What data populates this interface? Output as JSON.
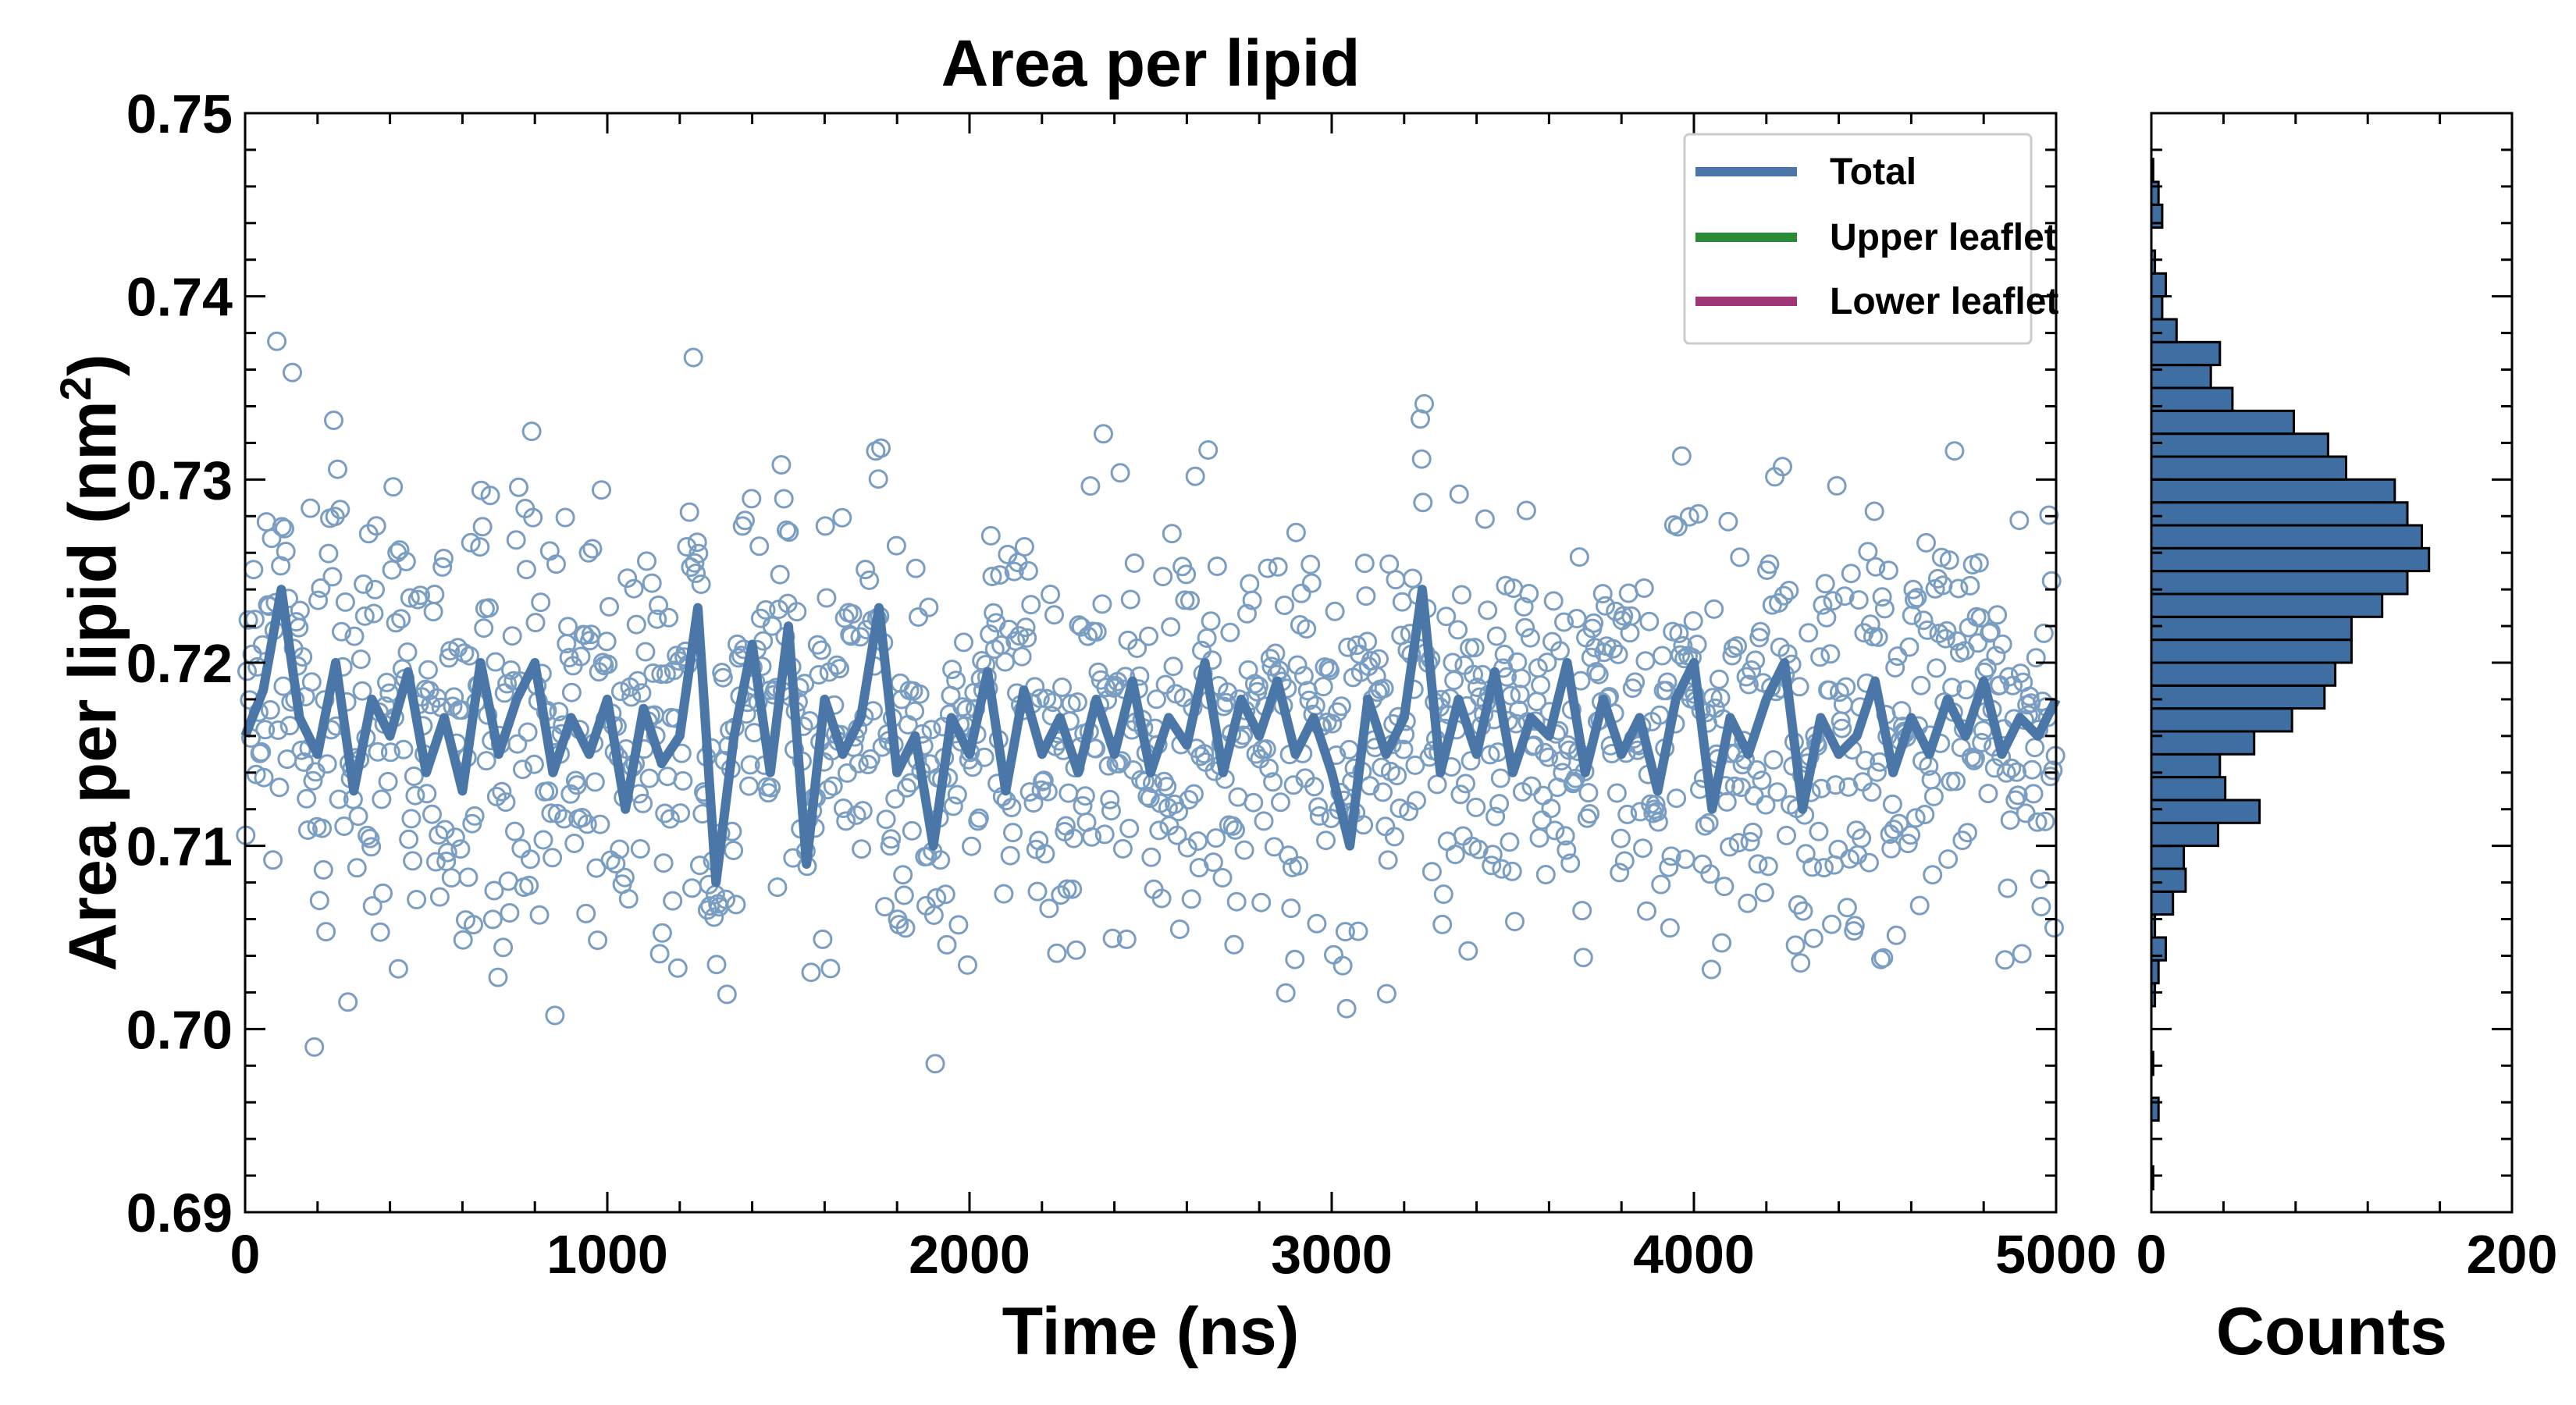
{
  "chart_data": [
    {
      "type": "scatter",
      "title": "Area per lipid",
      "xlabel": "Time (ns)",
      "ylabel": "Area per lipid (nm",
      "ylabel_sup": "2",
      "ylabel_close": ")",
      "xlim": [
        0,
        5000
      ],
      "ylim": [
        0.69,
        0.75
      ],
      "xticks": [
        "0",
        "1000",
        "2000",
        "3000",
        "4000",
        "5000"
      ],
      "yticks": [
        "0.69",
        "0.70",
        "0.71",
        "0.72",
        "0.73",
        "0.74",
        "0.75"
      ],
      "legend": [
        {
          "label": "Total",
          "color": "#4a77a8"
        },
        {
          "label": "Upper leaflet",
          "color": "#2a8a3a"
        },
        {
          "label": "Lower leaflet",
          "color": "#a03676"
        }
      ],
      "scatter_color": "#7a9dc2",
      "series": [
        {
          "name": "Total",
          "kind": "line",
          "color": "#4a77a8",
          "x": [
            0,
            50,
            100,
            150,
            200,
            250,
            300,
            350,
            400,
            450,
            500,
            550,
            600,
            650,
            700,
            750,
            800,
            850,
            900,
            950,
            1000,
            1050,
            1100,
            1150,
            1200,
            1250,
            1300,
            1350,
            1400,
            1450,
            1500,
            1550,
            1600,
            1650,
            1700,
            1750,
            1800,
            1850,
            1900,
            1950,
            2000,
            2050,
            2100,
            2150,
            2200,
            2250,
            2300,
            2350,
            2400,
            2450,
            2500,
            2550,
            2600,
            2650,
            2700,
            2750,
            2800,
            2850,
            2900,
            2950,
            3000,
            3050,
            3100,
            3150,
            3200,
            3250,
            3300,
            3350,
            3400,
            3450,
            3500,
            3550,
            3600,
            3650,
            3700,
            3750,
            3800,
            3850,
            3900,
            3950,
            4000,
            4050,
            4100,
            4150,
            4200,
            4250,
            4300,
            4350,
            4400,
            4450,
            4500,
            4550,
            4600,
            4650,
            4700,
            4750,
            4800,
            4850,
            4900,
            4950,
            5000
          ],
          "y": [
            0.716,
            0.7185,
            0.724,
            0.717,
            0.715,
            0.72,
            0.713,
            0.718,
            0.716,
            0.7195,
            0.714,
            0.717,
            0.713,
            0.72,
            0.715,
            0.718,
            0.72,
            0.714,
            0.717,
            0.715,
            0.718,
            0.712,
            0.7175,
            0.7145,
            0.716,
            0.723,
            0.708,
            0.716,
            0.721,
            0.714,
            0.722,
            0.709,
            0.718,
            0.715,
            0.717,
            0.723,
            0.714,
            0.716,
            0.71,
            0.717,
            0.715,
            0.7195,
            0.713,
            0.7185,
            0.715,
            0.717,
            0.714,
            0.718,
            0.715,
            0.719,
            0.714,
            0.717,
            0.7155,
            0.72,
            0.714,
            0.718,
            0.716,
            0.719,
            0.715,
            0.717,
            0.714,
            0.71,
            0.718,
            0.715,
            0.717,
            0.724,
            0.714,
            0.718,
            0.715,
            0.7195,
            0.714,
            0.717,
            0.716,
            0.72,
            0.714,
            0.718,
            0.715,
            0.717,
            0.713,
            0.718,
            0.72,
            0.712,
            0.717,
            0.715,
            0.718,
            0.72,
            0.712,
            0.717,
            0.715,
            0.716,
            0.719,
            0.714,
            0.717,
            0.715,
            0.718,
            0.716,
            0.719,
            0.715,
            0.717,
            0.716,
            0.718
          ]
        }
      ]
    },
    {
      "type": "bar",
      "orientation": "horizontal",
      "xlabel": "Counts",
      "xticks": [
        "0",
        "200"
      ],
      "xlim": [
        0,
        200
      ],
      "ylim": [
        0.69,
        0.75
      ],
      "bin_width": 0.00125,
      "bin_start": 0.69,
      "color": "#3f6ea3",
      "values": [
        0,
        1,
        0,
        0,
        4,
        0,
        1,
        0,
        0,
        2,
        4,
        8,
        2,
        12,
        19,
        18,
        37,
        60,
        41,
        38,
        57,
        78,
        96,
        102,
        111,
        111,
        128,
        142,
        154,
        150,
        142,
        135,
        108,
        98,
        79,
        45,
        33,
        38,
        14,
        6,
        8,
        2,
        0,
        6,
        4,
        1,
        0,
        0
      ]
    }
  ]
}
